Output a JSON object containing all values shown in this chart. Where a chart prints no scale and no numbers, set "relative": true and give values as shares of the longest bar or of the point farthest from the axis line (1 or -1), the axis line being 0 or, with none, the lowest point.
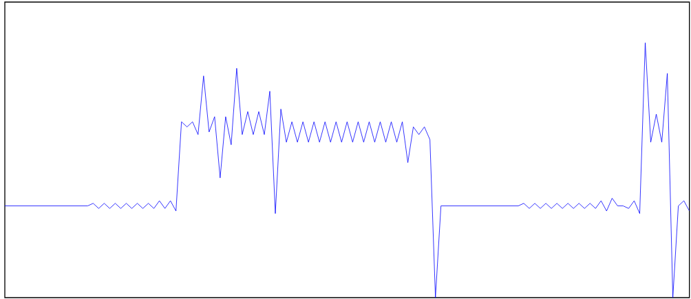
{
  "chart_data": {
    "type": "line",
    "relative": true,
    "categories": [
      null,
      null,
      null,
      null,
      null,
      null,
      null,
      null,
      null,
      null,
      null,
      null,
      null,
      null,
      null,
      null,
      null,
      null,
      null,
      null,
      null,
      null,
      null,
      null,
      null,
      null,
      null,
      null,
      null,
      null,
      null,
      null,
      null,
      null,
      null,
      null,
      null,
      null,
      null,
      null,
      null,
      null,
      null,
      null,
      null,
      null,
      null,
      null,
      null,
      null,
      null,
      null,
      null,
      null,
      null,
      null,
      null,
      null,
      null,
      null,
      null,
      null,
      null,
      null,
      null,
      null,
      null,
      null,
      null,
      null,
      null,
      null,
      null,
      null,
      null,
      null,
      null,
      null,
      null,
      null,
      null,
      null,
      null,
      null,
      null,
      null,
      null,
      null,
      null,
      null,
      null,
      null,
      null,
      null,
      null,
      null,
      null,
      null,
      null,
      null,
      null,
      null,
      null,
      null,
      null,
      null,
      null,
      null,
      null,
      null,
      null,
      null,
      null,
      null,
      null,
      null,
      null,
      null,
      null,
      null,
      null,
      null,
      null,
      null,
      null
    ],
    "series": [
      {
        "color": "#0000ff",
        "values": [
          0.36,
          0.36,
          0.36,
          0.36,
          0.36,
          0.36,
          0.36,
          0.36,
          0.36,
          0.36,
          0.36,
          0.36,
          0.36,
          0.36,
          0.36,
          0.36,
          0.37,
          0.35,
          0.37,
          0.35,
          0.37,
          0.35,
          0.37,
          0.35,
          0.37,
          0.35,
          0.37,
          0.35,
          0.38,
          0.35,
          0.38,
          0.34,
          0.69,
          0.67,
          0.69,
          0.64,
          0.87,
          0.65,
          0.71,
          0.47,
          0.71,
          0.6,
          0.9,
          0.64,
          0.73,
          0.64,
          0.73,
          0.64,
          0.81,
          0.33,
          0.74,
          0.61,
          0.69,
          0.61,
          0.69,
          0.61,
          0.69,
          0.61,
          0.69,
          0.61,
          0.69,
          0.61,
          0.69,
          0.61,
          0.69,
          0.61,
          0.69,
          0.61,
          0.69,
          0.61,
          0.69,
          0.61,
          0.69,
          0.53,
          0.67,
          0.64,
          0.67,
          0.62,
          0,
          0.36,
          0.36,
          0.36,
          0.36,
          0.36,
          0.36,
          0.36,
          0.36,
          0.36,
          0.36,
          0.36,
          0.36,
          0.36,
          0.36,
          0.36,
          0.37,
          0.35,
          0.37,
          0.35,
          0.37,
          0.35,
          0.37,
          0.35,
          0.37,
          0.35,
          0.37,
          0.35,
          0.37,
          0.35,
          0.38,
          0.34,
          0.39,
          0.36,
          0.36,
          0.35,
          0.38,
          0.33,
          1,
          0.61,
          0.72,
          0.61,
          0.88,
          0,
          0.36,
          0.38,
          0.34
        ]
      }
    ]
  }
}
